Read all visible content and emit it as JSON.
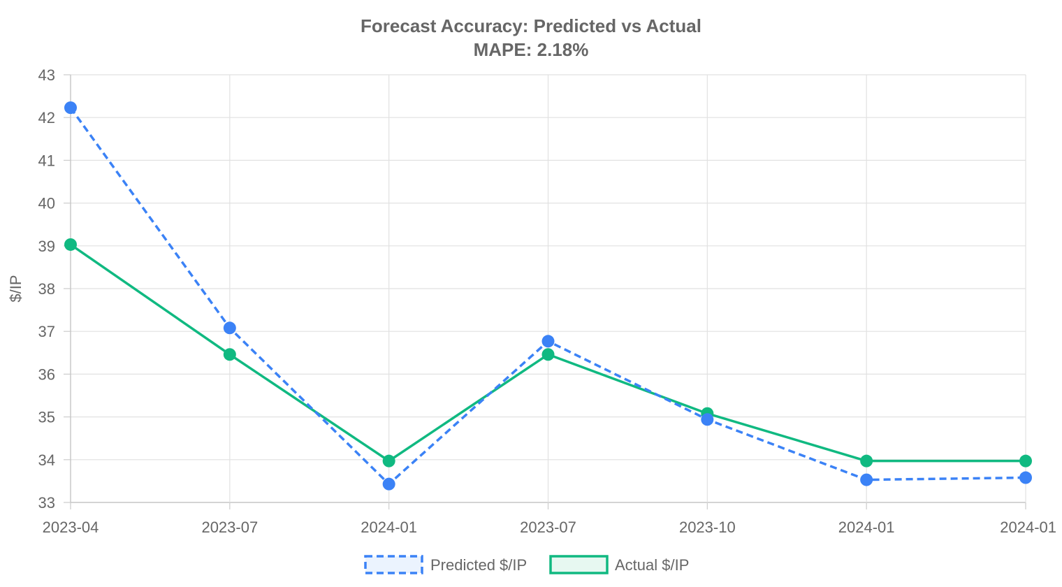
{
  "chart_data": {
    "type": "line",
    "title": "Forecast Accuracy: Predicted vs Actual",
    "subtitle": "MAPE: 2.18%",
    "ylabel": "$/IP",
    "xlabel": "",
    "categories": [
      "2023-04",
      "2023-07",
      "2024-01",
      "2023-07",
      "2023-10",
      "2024-01",
      "2024-01"
    ],
    "ylim": [
      33,
      43
    ],
    "yticks": [
      33,
      34,
      35,
      36,
      37,
      38,
      39,
      40,
      41,
      42,
      43
    ],
    "grid": true,
    "legend_position": "bottom",
    "series": [
      {
        "name": "Predicted $/IP",
        "values": [
          42.23,
          37.08,
          33.43,
          36.77,
          34.94,
          33.53,
          33.58
        ],
        "color": "#3b82f6",
        "dashed": true
      },
      {
        "name": "Actual $/IP",
        "values": [
          39.03,
          36.46,
          33.97,
          36.46,
          35.08,
          33.97,
          33.97
        ],
        "color": "#10b981",
        "dashed": false
      }
    ]
  }
}
